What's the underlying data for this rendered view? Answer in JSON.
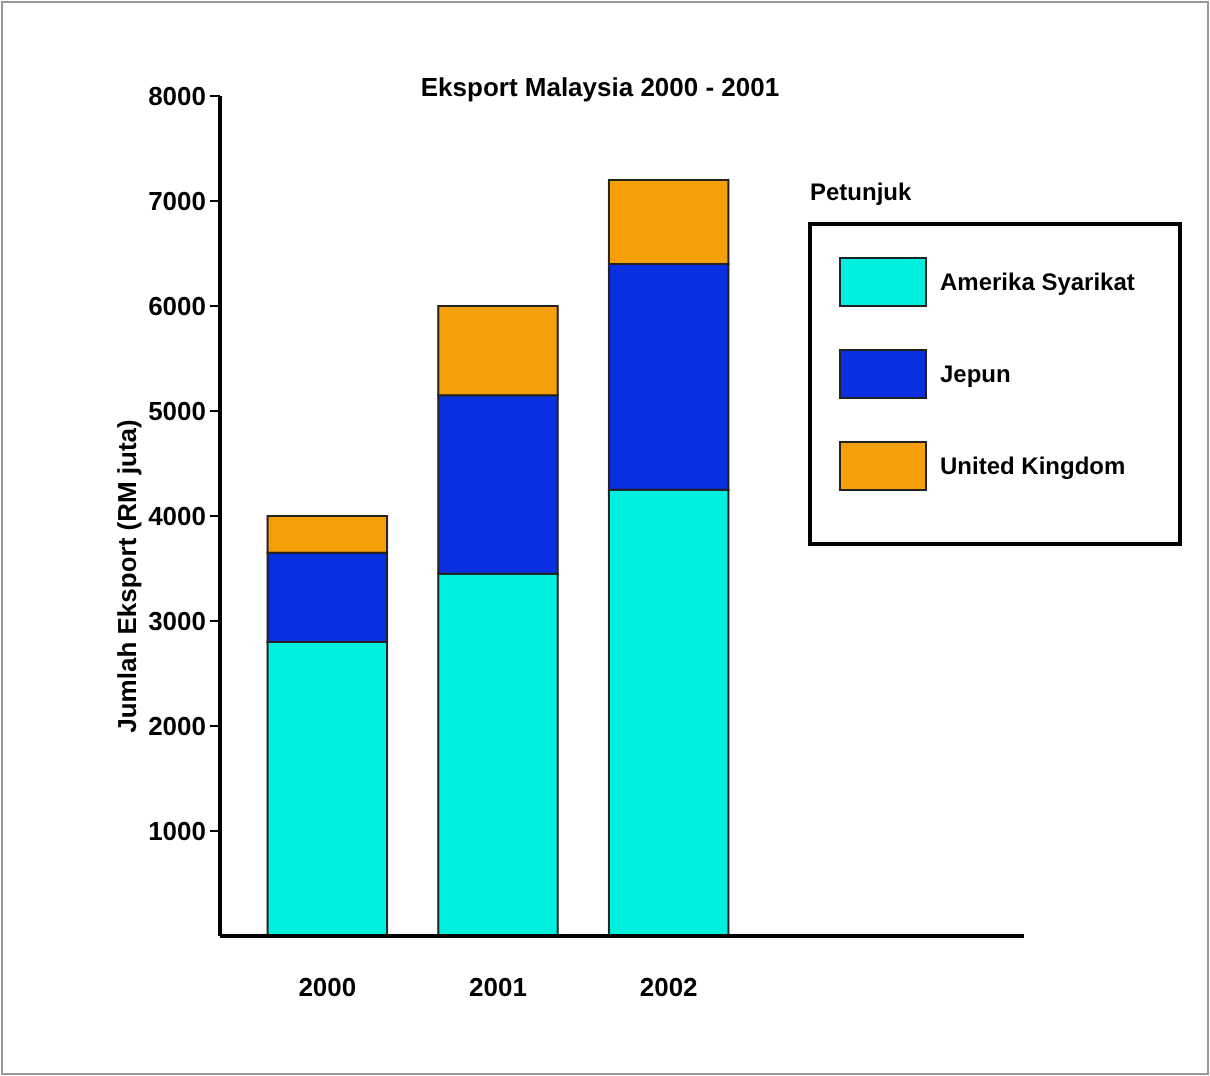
{
  "chart_data": {
    "type": "bar",
    "title": "Eksport Malaysia 2000 - 2001",
    "ylabel": "Jumlah Eksport (RM juta)",
    "legend_title": "Petunjuk",
    "categories": [
      "2000",
      "2001",
      "2002"
    ],
    "stacked": true,
    "series": [
      {
        "name": "Amerika Syarikat",
        "color": "#00f0e0",
        "values": [
          2800,
          3450,
          4250
        ]
      },
      {
        "name": "Jepun",
        "color": "#0a2fe0",
        "values": [
          850,
          1700,
          2150
        ]
      },
      {
        "name": "United Kingdom",
        "color": "#f5a00a",
        "values": [
          350,
          850,
          800
        ]
      }
    ],
    "ylim": [
      0,
      8000
    ],
    "yticks": [
      1000,
      2000,
      3000,
      4000,
      5000,
      6000,
      7000,
      8000
    ],
    "grid": false,
    "legend": "right"
  }
}
